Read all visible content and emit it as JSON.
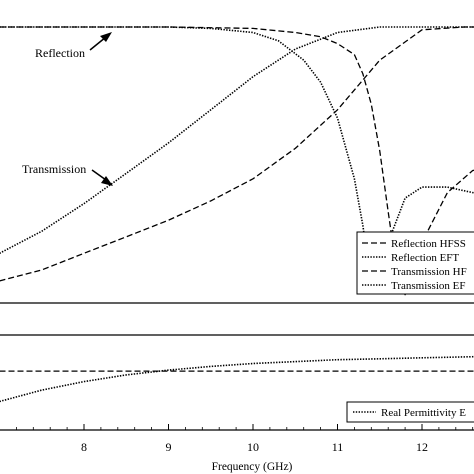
{
  "chart_data": [
    {
      "type": "line",
      "annotations": {
        "reflection": "Reflection",
        "transmission": "Transmission"
      },
      "legend": {
        "placement": "bottom-right",
        "entries": [
          {
            "label": "Reflection HFSS",
            "style": "dashed"
          },
          {
            "label": "Reflection EFT",
            "style": "dotted"
          },
          {
            "label": "Transmission HF",
            "style": "dashed"
          },
          {
            "label": "Transmission EF",
            "style": "dotted"
          }
        ]
      },
      "series": [
        {
          "name": "Reflection HFSS",
          "style": "dashed",
          "x": [
            7.0,
            8.0,
            9.0,
            10.0,
            10.5,
            10.8,
            11.0,
            11.2,
            11.3,
            11.4,
            11.5,
            11.6,
            11.7,
            11.8,
            12.0,
            12.3,
            12.6,
            12.8
          ],
          "y": [
            1.0,
            1.0,
            1.0,
            0.995,
            0.98,
            0.965,
            0.94,
            0.9,
            0.83,
            0.72,
            0.55,
            0.33,
            0.12,
            0.03,
            0.22,
            0.4,
            0.48,
            0.49
          ]
        },
        {
          "name": "Reflection EFT",
          "style": "dotted",
          "x": [
            7.0,
            8.0,
            9.0,
            9.5,
            10.0,
            10.3,
            10.6,
            10.8,
            11.0,
            11.2,
            11.3,
            11.4,
            11.5,
            11.6,
            11.8,
            12.0,
            12.3,
            12.6,
            12.8
          ],
          "y": [
            1.0,
            1.0,
            1.0,
            0.995,
            0.98,
            0.95,
            0.88,
            0.8,
            0.67,
            0.45,
            0.28,
            0.06,
            0.08,
            0.22,
            0.38,
            0.42,
            0.42,
            0.4,
            0.39
          ]
        },
        {
          "name": "Transmission HF",
          "style": "dashed",
          "x": [
            7.0,
            7.5,
            8.0,
            8.5,
            9.0,
            9.5,
            10.0,
            10.5,
            11.0,
            11.5,
            12.0,
            12.5,
            12.8
          ],
          "y": [
            0.08,
            0.12,
            0.18,
            0.24,
            0.3,
            0.37,
            0.45,
            0.56,
            0.7,
            0.88,
            0.99,
            1.0,
            1.0
          ]
        },
        {
          "name": "Transmission EF",
          "style": "dotted",
          "x": [
            7.0,
            7.5,
            8.0,
            8.5,
            9.0,
            9.5,
            10.0,
            10.5,
            11.0,
            11.5,
            12.0,
            12.5,
            12.8
          ],
          "y": [
            0.18,
            0.26,
            0.36,
            0.47,
            0.58,
            0.7,
            0.82,
            0.92,
            0.98,
            1.0,
            1.0,
            1.0,
            1.0
          ]
        }
      ],
      "xlim": [
        7.0,
        12.8
      ],
      "ylim": [
        0.0,
        1.04
      ]
    },
    {
      "type": "line",
      "xlabel": "Frequency (GHz)",
      "xticks": [
        8,
        9,
        10,
        11,
        12
      ],
      "legend": {
        "placement": "bottom-right",
        "entries": [
          {
            "label": "Real Permittivity E",
            "style": "dotted"
          }
        ]
      },
      "series": [
        {
          "style": "dashed",
          "x": [
            7.0,
            12.8
          ],
          "y": [
            0.62,
            0.62
          ]
        },
        {
          "name": "Real Permittivity E",
          "style": "dotted",
          "x": [
            7.0,
            7.5,
            8.0,
            8.5,
            9.0,
            9.5,
            10.0,
            10.5,
            11.0,
            11.5,
            12.0,
            12.5,
            12.8
          ],
          "y": [
            0.3,
            0.42,
            0.51,
            0.58,
            0.63,
            0.67,
            0.7,
            0.72,
            0.74,
            0.75,
            0.76,
            0.77,
            0.775
          ]
        }
      ],
      "xlim": [
        7.0,
        12.8
      ],
      "ylim": [
        0.0,
        1.0
      ]
    }
  ]
}
